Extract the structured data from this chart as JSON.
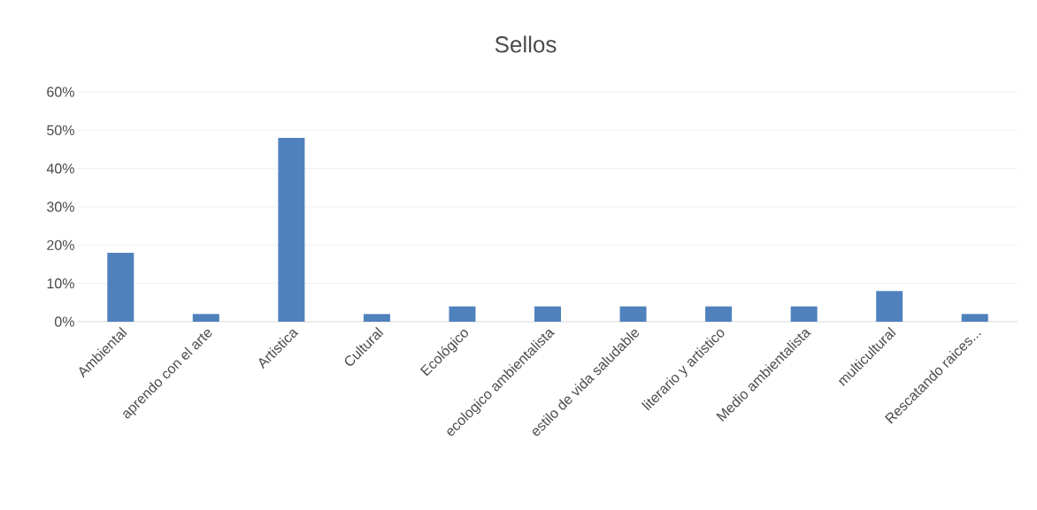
{
  "chart_data": {
    "type": "bar",
    "title": "Sellos",
    "categories": [
      "Ambiental",
      "aprendo con el arte",
      "Artistica",
      "Cultural",
      "Ecológico",
      "ecologico ambientalista",
      "estilo de vida saludable",
      "literario y artistico",
      "Medio ambientalista",
      "multicultural",
      "Rescatando raices..."
    ],
    "values": [
      18,
      2,
      48,
      2,
      4,
      4,
      4,
      4,
      4,
      8,
      2
    ],
    "color": "#4f81bd",
    "ylim": [
      0,
      60
    ],
    "yticks": [
      {
        "value": 0,
        "label": "0%"
      },
      {
        "value": 10,
        "label": "10%"
      },
      {
        "value": 20,
        "label": "20%"
      },
      {
        "value": 30,
        "label": "30%"
      },
      {
        "value": 40,
        "label": "40%"
      },
      {
        "value": 50,
        "label": "50%"
      },
      {
        "value": 60,
        "label": "60%"
      }
    ],
    "grid": "y"
  }
}
